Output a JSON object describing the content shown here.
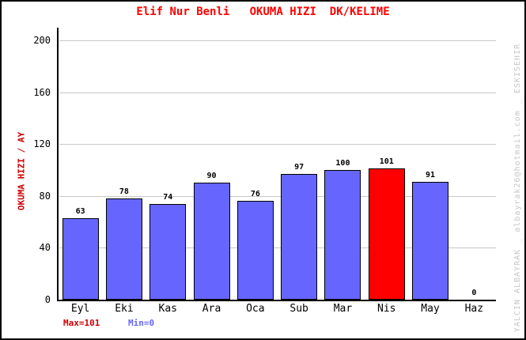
{
  "title": "Elif Nur Benli   OKUMA HIZI  DK/KELIME",
  "watermark": "YALCIN ALBAYRAK _ albayrak26@hotmail.com _ ESKISEHIR",
  "footer": {
    "max_label": "Max=101",
    "min_label": "Min=0"
  },
  "colors": {
    "title": "#FF0000",
    "ylabel": "#CC0000",
    "bar": "#6666FF",
    "highlight": "#FF0000",
    "grid": "#C8C8C8",
    "axis": "#000000",
    "max_text": "#CC0000",
    "min_text": "#6666FF",
    "watermark": "#C6C6C6"
  },
  "chart_data": {
    "type": "bar",
    "title": "Elif Nur Benli   OKUMA HIZI  DK/KELIME",
    "ylabel": "OKUMA HIZI / AY",
    "xlabel": "",
    "categories": [
      "Eyl",
      "Eki",
      "Kas",
      "Ara",
      "Oca",
      "Sub",
      "Mar",
      "Nis",
      "May",
      "Haz"
    ],
    "values": [
      63,
      78,
      74,
      90,
      76,
      97,
      100,
      101,
      91,
      0
    ],
    "ylim": [
      0,
      200
    ],
    "yticks": [
      0,
      40,
      80,
      120,
      160,
      200
    ],
    "grid": true,
    "legend": "none",
    "highlight_index": 7,
    "max": 101,
    "min": 0
  }
}
